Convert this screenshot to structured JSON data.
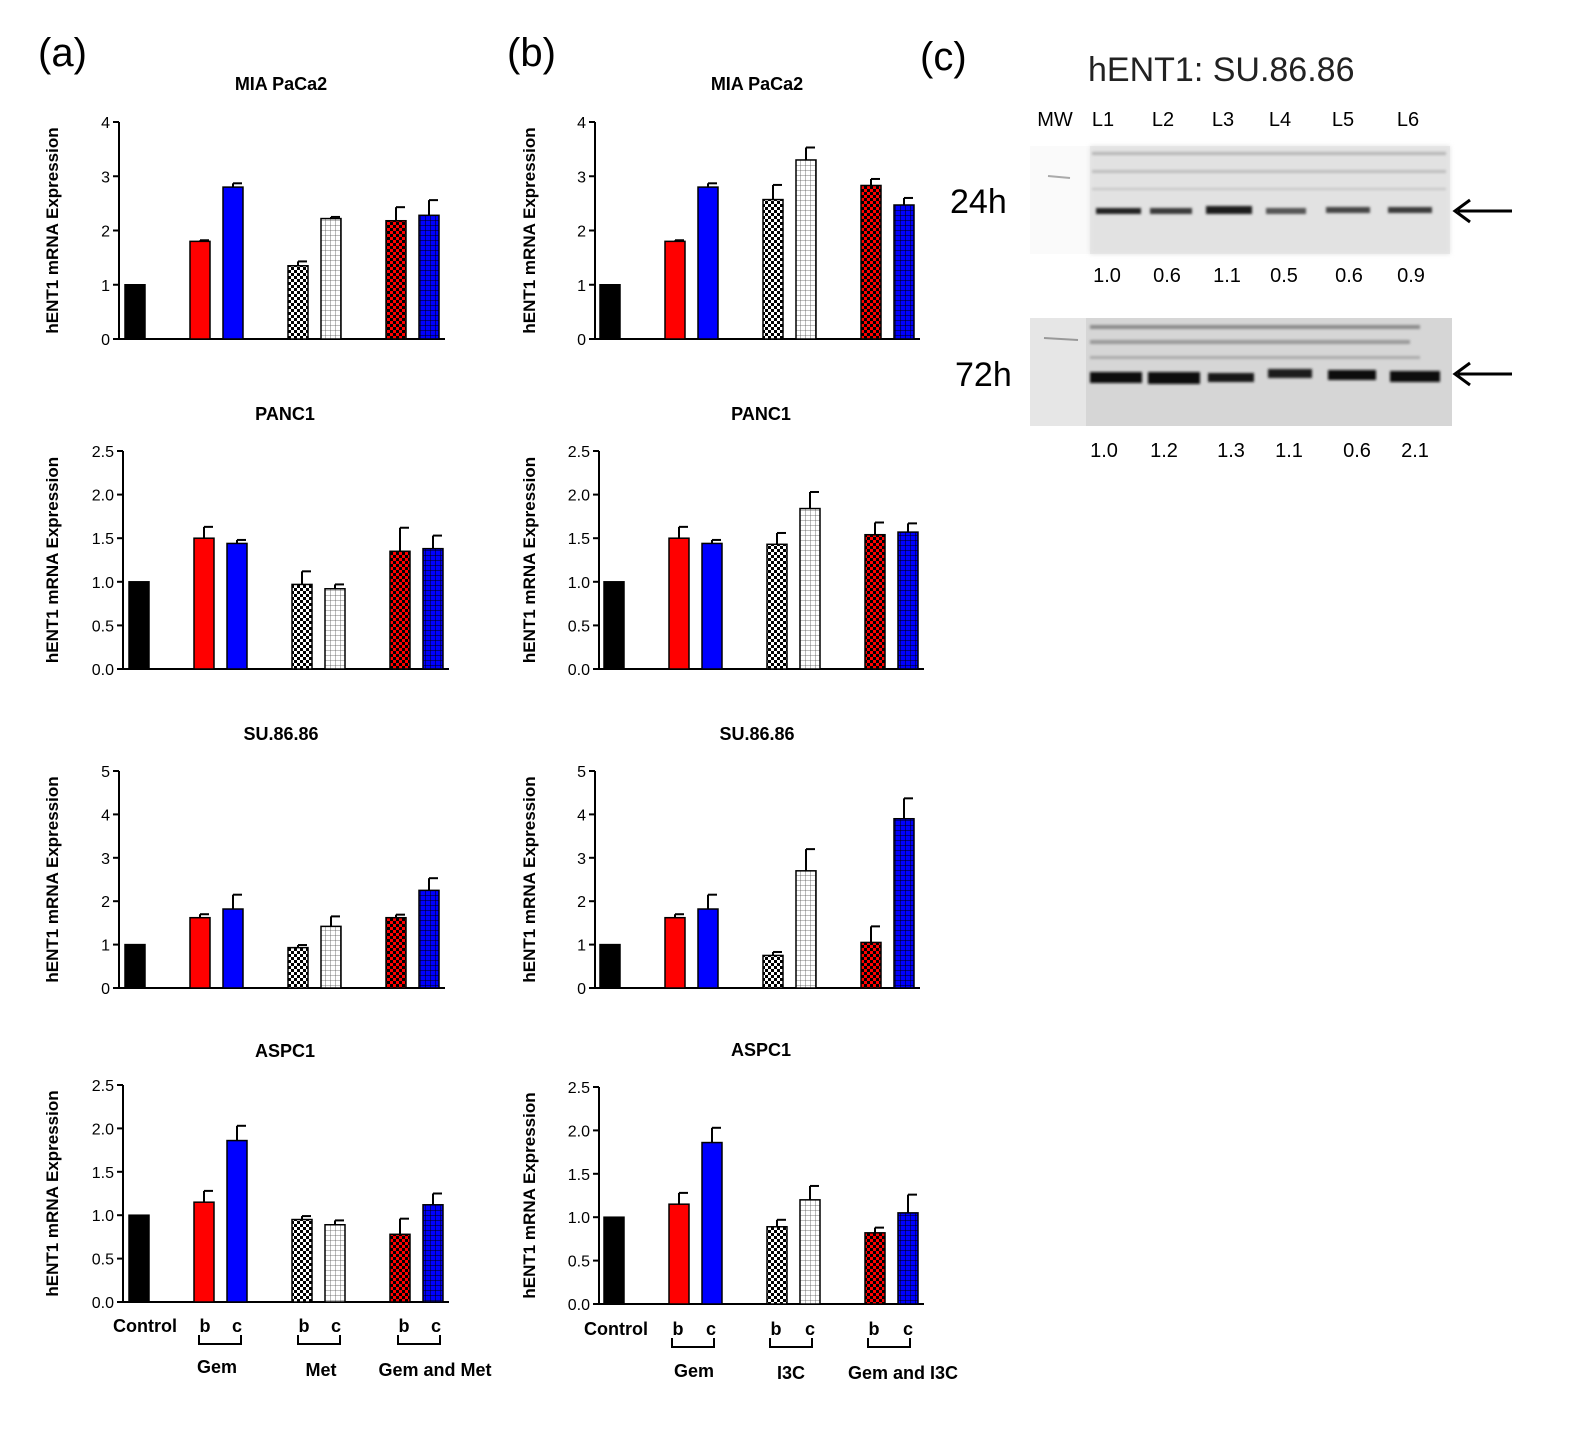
{
  "panel_labels": {
    "a": "(a)",
    "b": "(b)",
    "c": "(c)"
  },
  "colors": {
    "red": "#ff0000",
    "blue": "#0000ff",
    "black": "#000000",
    "white": "#ffffff"
  },
  "y_axis_label": "hENT1 mRNA Expression",
  "group_labels": {
    "a": {
      "control": "Control",
      "sub_b": "b",
      "sub_c": "c",
      "group1": "Gem",
      "group2": "Met",
      "group3": "Gem and Met"
    },
    "b": {
      "control": "Control",
      "sub_b": "b",
      "sub_c": "c",
      "group1": "Gem",
      "group2": "I3C",
      "group3": "Gem and I3C"
    }
  },
  "bar_styles": [
    {
      "fill": "black"
    },
    {
      "fill": "red"
    },
    {
      "fill": "blue"
    },
    {
      "fill": "white-dots"
    },
    {
      "fill": "white-grid"
    },
    {
      "fill": "red-dots"
    },
    {
      "fill": "blue-grid"
    }
  ],
  "chart_data": [
    {
      "panel": "a",
      "type": "bar",
      "title": "MIA PaCa2",
      "ylabel": "hENT1 mRNA Expression",
      "ylim": [
        0,
        4
      ],
      "yticks": [
        "0",
        "1",
        "2",
        "3",
        "4"
      ],
      "values": [
        1.0,
        1.8,
        2.8,
        1.35,
        2.22,
        2.18,
        2.28
      ],
      "errors": [
        0,
        0.02,
        0.07,
        0.08,
        0.03,
        0.25,
        0.28
      ]
    },
    {
      "panel": "a",
      "type": "bar",
      "title": "PANC1",
      "ylabel": "hENT1 mRNA Expression",
      "ylim": [
        0,
        2.5
      ],
      "yticks": [
        "0.0",
        "0.5",
        "1.0",
        "1.5",
        "2.0",
        "2.5"
      ],
      "values": [
        1.0,
        1.5,
        1.44,
        0.97,
        0.92,
        1.35,
        1.38
      ],
      "errors": [
        0,
        0.13,
        0.04,
        0.15,
        0.05,
        0.27,
        0.15
      ]
    },
    {
      "panel": "a",
      "type": "bar",
      "title": "SU.86.86",
      "ylabel": "hENT1 mRNA Expression",
      "ylim": [
        0,
        5
      ],
      "yticks": [
        "0",
        "1",
        "2",
        "3",
        "4",
        "5"
      ],
      "values": [
        1.0,
        1.62,
        1.82,
        0.93,
        1.42,
        1.62,
        2.25
      ],
      "errors": [
        0,
        0.08,
        0.33,
        0.06,
        0.23,
        0.07,
        0.28
      ]
    },
    {
      "panel": "a",
      "type": "bar",
      "title": "ASPC1",
      "ylabel": "hENT1 mRNA Expression",
      "ylim": [
        0,
        2.5
      ],
      "yticks": [
        "0.0",
        "0.5",
        "1.0",
        "1.5",
        "2.0",
        "2.5"
      ],
      "values": [
        1.0,
        1.15,
        1.86,
        0.95,
        0.89,
        0.78,
        1.12
      ],
      "errors": [
        0,
        0.13,
        0.17,
        0.04,
        0.05,
        0.18,
        0.13
      ]
    },
    {
      "panel": "b",
      "type": "bar",
      "title": "MIA PaCa2",
      "ylabel": "hENT1 mRNA Expression",
      "ylim": [
        0,
        4
      ],
      "yticks": [
        "0",
        "1",
        "2",
        "3",
        "4"
      ],
      "values": [
        1.0,
        1.8,
        2.8,
        2.57,
        3.3,
        2.83,
        2.47
      ],
      "errors": [
        0,
        0.02,
        0.07,
        0.27,
        0.23,
        0.12,
        0.13
      ]
    },
    {
      "panel": "b",
      "type": "bar",
      "title": "PANC1",
      "ylabel": "hENT1 mRNA Expression",
      "ylim": [
        0,
        2.5
      ],
      "yticks": [
        "0.0",
        "0.5",
        "1.0",
        "1.5",
        "2.0",
        "2.5"
      ],
      "values": [
        1.0,
        1.5,
        1.44,
        1.43,
        1.84,
        1.54,
        1.57
      ],
      "errors": [
        0,
        0.13,
        0.04,
        0.13,
        0.19,
        0.14,
        0.1
      ]
    },
    {
      "panel": "b",
      "type": "bar",
      "title": "SU.86.86",
      "ylabel": "hENT1 mRNA Expression",
      "ylim": [
        0,
        5
      ],
      "yticks": [
        "0",
        "1",
        "2",
        "3",
        "4",
        "5"
      ],
      "values": [
        1.0,
        1.62,
        1.82,
        0.75,
        2.7,
        1.05,
        3.9
      ],
      "errors": [
        0,
        0.08,
        0.33,
        0.08,
        0.5,
        0.37,
        0.47
      ]
    },
    {
      "panel": "b",
      "type": "bar",
      "title": "ASPC1",
      "ylabel": "hENT1 mRNA Expression",
      "ylim": [
        0,
        2.5
      ],
      "yticks": [
        "0.0",
        "0.5",
        "1.0",
        "1.5",
        "2.0",
        "2.5"
      ],
      "values": [
        1.0,
        1.15,
        1.86,
        0.89,
        1.2,
        0.82,
        1.05
      ],
      "errors": [
        0,
        0.13,
        0.17,
        0.08,
        0.16,
        0.06,
        0.21
      ]
    }
  ],
  "western_blot": {
    "title": "hENT1: SU.86.86",
    "lane_labels": [
      "MW",
      "L1",
      "L2",
      "L3",
      "L4",
      "L5",
      "L6"
    ],
    "rows": [
      {
        "time": "24h",
        "values": [
          "1.0",
          "0.6",
          "1.1",
          "0.5",
          "0.6",
          "0.9"
        ]
      },
      {
        "time": "72h",
        "values": [
          "1.0",
          "1.2",
          "1.3",
          "1.1",
          "0.6",
          "2.1"
        ]
      }
    ]
  }
}
